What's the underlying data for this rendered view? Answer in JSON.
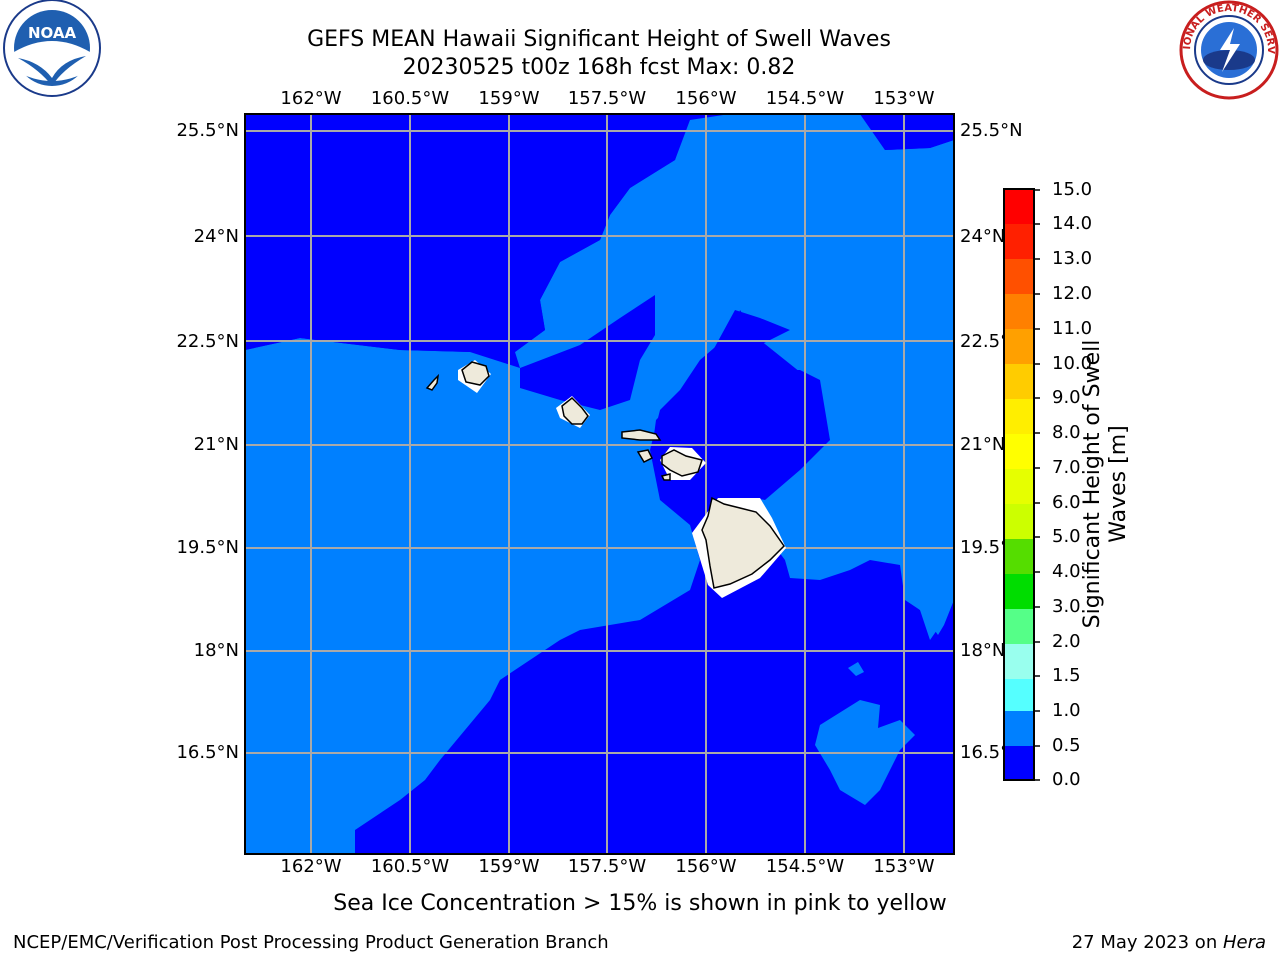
{
  "title_line1": "GEFS MEAN Hawaii Significant Height of Swell Waves",
  "title_line2": "20230525 t00z 168h fcst   Max: 0.82",
  "logos": {
    "left": "noaa-logo",
    "right": "national-weather-service-logo",
    "left_text": "NOAA",
    "right_text": "NATIONAL WEATHER SERVICE"
  },
  "map": {
    "lon_labels": [
      "162°W",
      "160.5°W",
      "159°W",
      "157.5°W",
      "156°W",
      "154.5°W",
      "153°W"
    ],
    "lat_labels": [
      "25.5°N",
      "24°N",
      "22.5°N",
      "21°N",
      "19.5°N",
      "18°N",
      "16.5°N"
    ],
    "colors": {
      "band_0_0_5": "#0000ff",
      "band_0_5_1_0": "#0080ff",
      "land": "#eeeadb",
      "gridline": "#a9a9a9"
    }
  },
  "colorbar": {
    "ticks": [
      "15.0",
      "14.0",
      "13.0",
      "12.0",
      "11.0",
      "10.0",
      "9.0",
      "8.0",
      "7.0",
      "6.0",
      "5.0",
      "4.0",
      "3.0",
      "2.0",
      "1.5",
      "1.0",
      "0.5",
      "0.0"
    ],
    "colors_top_to_bottom": [
      "#ff0000",
      "#ff2000",
      "#ff5000",
      "#ff8000",
      "#ffa000",
      "#ffcc00",
      "#ffee00",
      "#ffff00",
      "#e6ff00",
      "#ccff00",
      "#99ee00",
      "#55dd00",
      "#00dd00",
      "#55ff88",
      "#99ffee",
      "#55ffff",
      "#00ffff",
      "#0080ff",
      "#0000ff"
    ],
    "label_line1": "Significant Height of Swell",
    "label_line2": "Waves [m]"
  },
  "note": "Sea Ice Concentration > 15% is shown in pink to yellow",
  "footer": {
    "left": "NCEP/EMC/Verification Post Processing Product Generation Branch",
    "right_prefix": "27 May 2023 on ",
    "right_host": "Hera"
  }
}
